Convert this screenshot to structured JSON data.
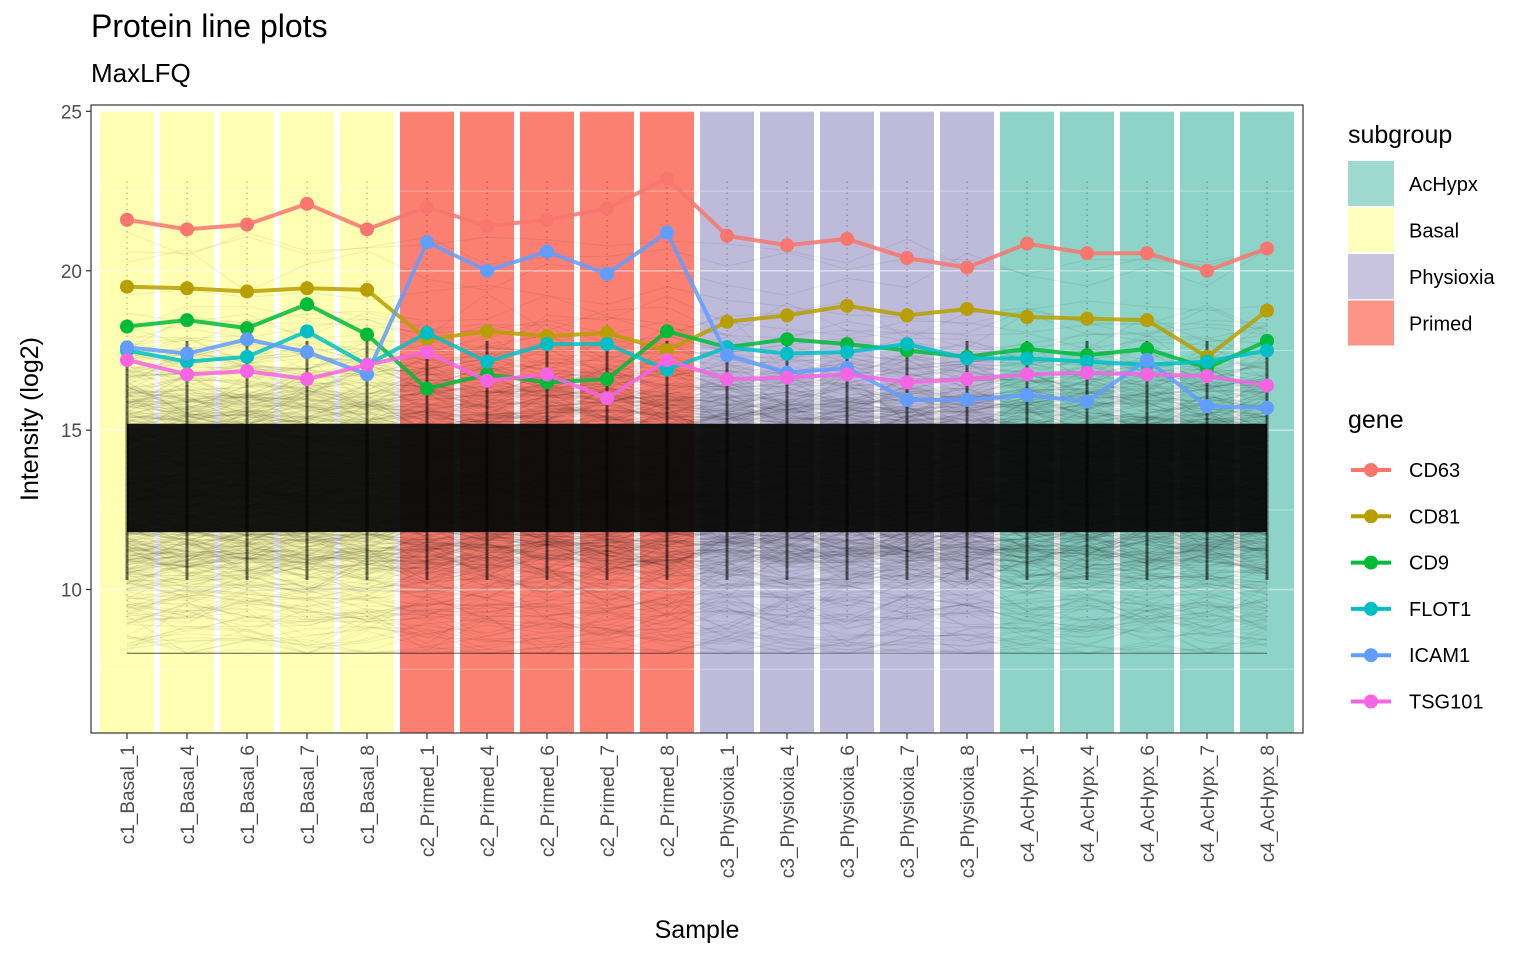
{
  "chart_data": {
    "type": "line",
    "title": "Protein line plots",
    "subtitle": "MaxLFQ",
    "xlabel": "Sample",
    "ylabel": "Intensity (log2)",
    "ylim": [
      5.5,
      25.2
    ],
    "yticks": [
      10,
      15,
      20,
      25
    ],
    "grid": true,
    "legend_position": "right",
    "samples": [
      "c1_Basal_1",
      "c1_Basal_4",
      "c1_Basal_6",
      "c1_Basal_7",
      "c1_Basal_8",
      "c2_Primed_1",
      "c2_Primed_4",
      "c2_Primed_6",
      "c2_Primed_7",
      "c2_Primed_8",
      "c3_Physioxia_1",
      "c3_Physioxia_4",
      "c3_Physioxia_6",
      "c3_Physioxia_7",
      "c3_Physioxia_8",
      "c4_AcHypx_1",
      "c4_AcHypx_4",
      "c4_AcHypx_6",
      "c4_AcHypx_7",
      "c4_AcHypx_8"
    ],
    "sample_subgroup": [
      "Basal",
      "Basal",
      "Basal",
      "Basal",
      "Basal",
      "Primed",
      "Primed",
      "Primed",
      "Primed",
      "Primed",
      "Physioxia",
      "Physioxia",
      "Physioxia",
      "Physioxia",
      "Physioxia",
      "AcHypx",
      "AcHypx",
      "AcHypx",
      "AcHypx",
      "AcHypx"
    ],
    "subgroup_legend": {
      "title": "subgroup",
      "items": [
        {
          "name": "AcHypx",
          "color": "#8dd3c7"
        },
        {
          "name": "Basal",
          "color": "#ffffb3"
        },
        {
          "name": "Physioxia",
          "color": "#bebada"
        },
        {
          "name": "Primed",
          "color": "#fb8072"
        }
      ]
    },
    "background_proteins": {
      "center": 13.2,
      "dense_range": [
        11.8,
        15.2
      ],
      "min": 8.0,
      "max": 24.0,
      "color": "#000000"
    },
    "series_legend_title": "gene",
    "series": [
      {
        "name": "CD63",
        "color": "#f8766d",
        "values": [
          21.6,
          21.3,
          21.45,
          22.1,
          21.3,
          22.0,
          21.4,
          21.6,
          21.95,
          22.9,
          21.1,
          20.8,
          21.0,
          20.4,
          20.1,
          20.85,
          20.55,
          20.55,
          20.0,
          20.7
        ]
      },
      {
        "name": "CD81",
        "color": "#b79f00",
        "values": [
          19.5,
          19.45,
          19.35,
          19.45,
          19.4,
          17.85,
          18.1,
          17.95,
          18.05,
          17.5,
          18.4,
          18.6,
          18.9,
          18.6,
          18.8,
          18.55,
          18.5,
          18.45,
          17.3,
          18.75
        ]
      },
      {
        "name": "CD9",
        "color": "#00ba38",
        "values": [
          18.25,
          18.45,
          18.2,
          18.95,
          18.0,
          16.3,
          16.75,
          16.5,
          16.6,
          18.1,
          17.6,
          17.85,
          17.7,
          17.5,
          17.3,
          17.55,
          17.35,
          17.55,
          16.95,
          17.8
        ]
      },
      {
        "name": "FLOT1",
        "color": "#00bfc4",
        "values": [
          17.5,
          17.15,
          17.3,
          18.1,
          17.05,
          18.05,
          17.15,
          17.7,
          17.7,
          16.9,
          17.6,
          17.4,
          17.45,
          17.7,
          17.25,
          17.25,
          17.15,
          17.05,
          17.15,
          17.5
        ]
      },
      {
        "name": "ICAM1",
        "color": "#619cff",
        "values": [
          17.6,
          17.4,
          17.85,
          17.45,
          16.75,
          20.9,
          20.0,
          20.6,
          19.9,
          21.2,
          17.35,
          16.8,
          16.95,
          15.95,
          15.95,
          16.1,
          15.9,
          17.2,
          15.75,
          15.7
        ]
      },
      {
        "name": "TSG101",
        "color": "#f564e3",
        "values": [
          17.2,
          16.75,
          16.85,
          16.6,
          17.05,
          17.45,
          16.55,
          16.75,
          16.0,
          17.2,
          16.6,
          16.65,
          16.75,
          16.5,
          16.6,
          16.75,
          16.8,
          16.75,
          16.7,
          16.4
        ]
      }
    ]
  }
}
